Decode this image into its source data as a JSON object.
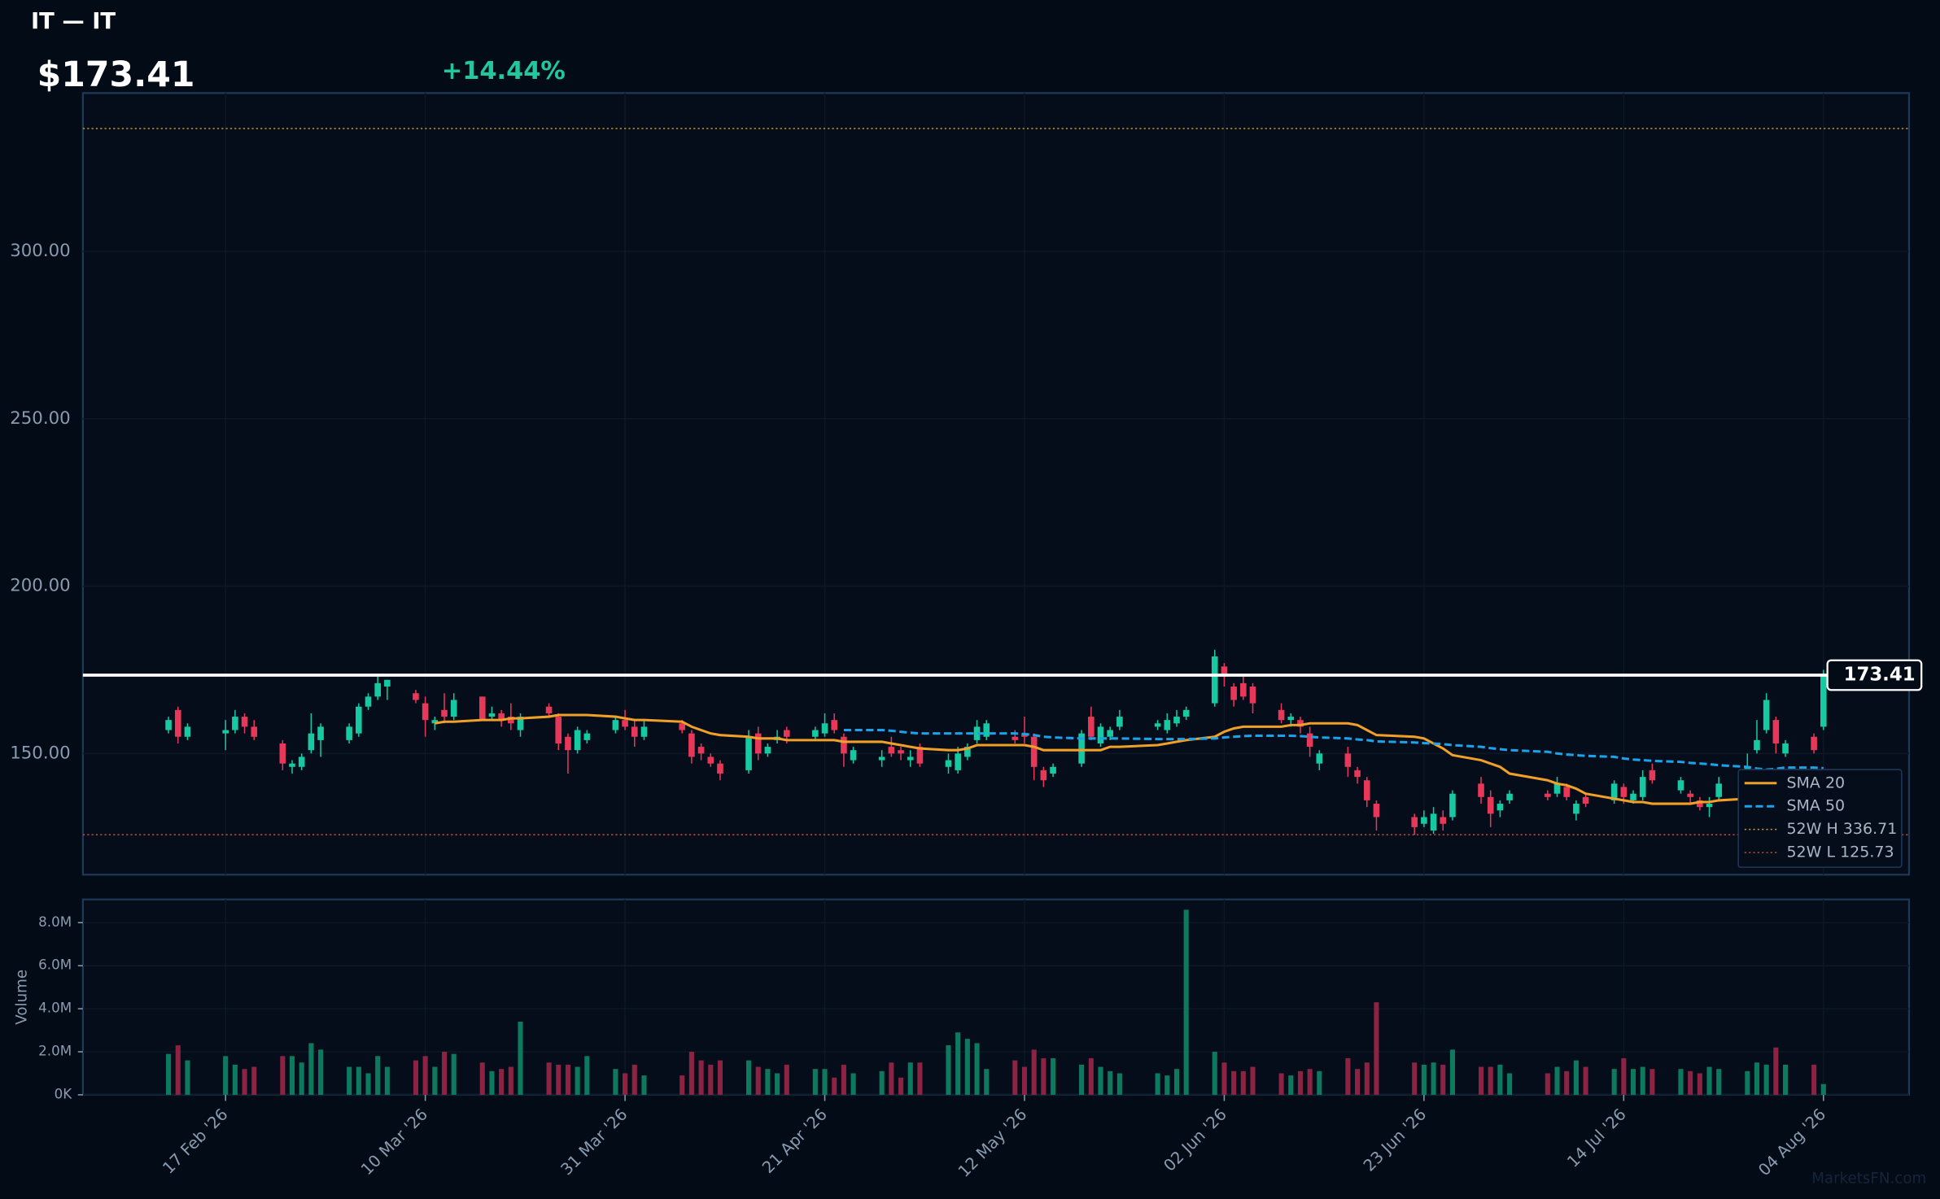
{
  "chart_data": {
    "type": "candlestick",
    "title": "IT — IT",
    "price_label": "$173.41",
    "change_label": "+14.44%",
    "watermark": "MarketsFN.com",
    "up_color": "#16c9a2",
    "down_color": "#e8385a",
    "volume_up_color": "#0d7a60",
    "volume_down_color": "#8c2342",
    "x": [
      "2026-02-11",
      "2026-02-12",
      "2026-02-13",
      "2026-02-17",
      "2026-02-18",
      "2026-02-19",
      "2026-02-20",
      "2026-02-23",
      "2026-02-24",
      "2026-02-25",
      "2026-02-26",
      "2026-02-27",
      "2026-03-02",
      "2026-03-03",
      "2026-03-04",
      "2026-03-05",
      "2026-03-06",
      "2026-03-09",
      "2026-03-10",
      "2026-03-11",
      "2026-03-12",
      "2026-03-13",
      "2026-03-16",
      "2026-03-17",
      "2026-03-18",
      "2026-03-19",
      "2026-03-20",
      "2026-03-23",
      "2026-03-24",
      "2026-03-25",
      "2026-03-26",
      "2026-03-27",
      "2026-03-30",
      "2026-03-31",
      "2026-04-01",
      "2026-04-02",
      "2026-04-06",
      "2026-04-07",
      "2026-04-08",
      "2026-04-09",
      "2026-04-10",
      "2026-04-13",
      "2026-04-14",
      "2026-04-15",
      "2026-04-16",
      "2026-04-17",
      "2026-04-20",
      "2026-04-21",
      "2026-04-22",
      "2026-04-23",
      "2026-04-24",
      "2026-04-27",
      "2026-04-28",
      "2026-04-29",
      "2026-04-30",
      "2026-05-01",
      "2026-05-04",
      "2026-05-05",
      "2026-05-06",
      "2026-05-07",
      "2026-05-08",
      "2026-05-11",
      "2026-05-12",
      "2026-05-13",
      "2026-05-14",
      "2026-05-15",
      "2026-05-18",
      "2026-05-19",
      "2026-05-20",
      "2026-05-21",
      "2026-05-22",
      "2026-05-26",
      "2026-05-27",
      "2026-05-28",
      "2026-05-29",
      "2026-06-01",
      "2026-06-02",
      "2026-06-03",
      "2026-06-04",
      "2026-06-05",
      "2026-06-08",
      "2026-06-09",
      "2026-06-10",
      "2026-06-11",
      "2026-06-12",
      "2026-06-15",
      "2026-06-16",
      "2026-06-17",
      "2026-06-18",
      "2026-06-22",
      "2026-06-23",
      "2026-06-24",
      "2026-06-25",
      "2026-06-26",
      "2026-06-29",
      "2026-06-30",
      "2026-07-01",
      "2026-07-02",
      "2026-07-06",
      "2026-07-07",
      "2026-07-08",
      "2026-07-09",
      "2026-07-10",
      "2026-07-13",
      "2026-07-14",
      "2026-07-15",
      "2026-07-16",
      "2026-07-17",
      "2026-07-20",
      "2026-07-21",
      "2026-07-22",
      "2026-07-23",
      "2026-07-24",
      "2026-07-27",
      "2026-07-28",
      "2026-07-29",
      "2026-07-30",
      "2026-07-31",
      "2026-08-03",
      "2026-08-04"
    ],
    "open": [
      157,
      163,
      155,
      156,
      157,
      161,
      158,
      153,
      146,
      146,
      151,
      154,
      154,
      156,
      164,
      167,
      170,
      168,
      165,
      159,
      163,
      161,
      167,
      161,
      162,
      161,
      157,
      164,
      161,
      155,
      151,
      154,
      157,
      160,
      158,
      155,
      159,
      156,
      152,
      149,
      147,
      145,
      156,
      150,
      154,
      157,
      155,
      156,
      160,
      155,
      148,
      148,
      152,
      151,
      148,
      152,
      146,
      145,
      149,
      154,
      155,
      155,
      156,
      155,
      145,
      144,
      147,
      161,
      153,
      155,
      158,
      158,
      157,
      159,
      161,
      165,
      176,
      170,
      171,
      170,
      163,
      160,
      160,
      156,
      147,
      150,
      145,
      142,
      135,
      131,
      129,
      127,
      131,
      131,
      141,
      137,
      133,
      136,
      138,
      138,
      140,
      132,
      137,
      136,
      140,
      136,
      137,
      145,
      139,
      138,
      136,
      134,
      137,
      144,
      151,
      157,
      160,
      150,
      155,
      158
    ],
    "high": [
      161,
      164,
      159,
      160,
      163,
      162,
      160,
      154,
      148,
      150,
      162,
      159,
      159,
      165,
      168,
      173,
      172,
      169,
      167,
      161,
      168,
      168,
      167,
      164,
      163,
      165,
      162,
      165,
      162,
      156,
      158,
      157,
      161,
      163,
      160,
      160,
      160,
      157,
      153,
      150,
      148,
      157,
      158,
      153,
      157,
      158,
      158,
      162,
      162,
      156,
      152,
      151,
      155,
      152,
      151,
      153,
      150,
      152,
      153,
      160,
      160,
      157,
      161,
      156,
      146,
      147,
      157,
      164,
      159,
      158,
      163,
      160,
      162,
      163,
      164,
      181,
      177,
      171,
      173,
      171,
      165,
      162,
      161,
      158,
      151,
      152,
      146,
      143,
      136,
      132,
      133,
      134,
      133,
      139,
      143,
      139,
      136,
      139,
      139,
      143,
      141,
      136,
      138,
      142,
      141,
      139,
      145,
      147,
      143,
      139,
      137,
      137,
      143,
      150,
      160,
      168,
      161,
      154,
      156,
      175
    ],
    "low": [
      156,
      153,
      154,
      151,
      156,
      156,
      154,
      145,
      144,
      145,
      150,
      149,
      153,
      155,
      163,
      166,
      166,
      165,
      155,
      157,
      159,
      160,
      160,
      160,
      158,
      157,
      155,
      161,
      151,
      144,
      150,
      153,
      156,
      157,
      152,
      154,
      156,
      147,
      148,
      146,
      142,
      144,
      148,
      149,
      153,
      153,
      154,
      155,
      156,
      146,
      147,
      146,
      149,
      148,
      146,
      146,
      144,
      144,
      148,
      153,
      154,
      153,
      153,
      142,
      140,
      143,
      146,
      154,
      152,
      154,
      157,
      157,
      156,
      158,
      160,
      164,
      170,
      164,
      166,
      162,
      159,
      158,
      156,
      149,
      145,
      143,
      141,
      134,
      127,
      125.73,
      128,
      126,
      127,
      130,
      135,
      128,
      131,
      135,
      136,
      137,
      136,
      130,
      134,
      135,
      135,
      135,
      136,
      141,
      138,
      135,
      133,
      131,
      136,
      142,
      150,
      156,
      150,
      149,
      150,
      157
    ],
    "close": [
      160,
      155,
      158,
      157,
      161,
      158,
      155,
      147,
      147,
      149,
      156,
      158,
      158,
      164,
      167,
      171,
      172,
      166,
      160,
      160,
      161,
      166,
      160,
      162,
      160,
      159,
      161,
      162,
      153,
      151,
      157,
      156,
      160,
      158,
      155,
      158,
      157,
      149,
      150,
      147,
      144,
      155,
      150,
      152,
      155,
      155,
      157,
      159,
      157,
      150,
      151,
      149,
      150,
      150,
      149,
      147,
      148,
      150,
      152,
      158,
      159,
      154,
      155,
      146,
      142,
      146,
      156,
      155,
      158,
      157,
      161,
      159,
      160,
      161,
      163,
      179,
      173,
      166,
      167,
      165,
      160,
      161,
      158,
      152,
      150,
      146,
      143,
      136,
      131,
      128,
      131,
      132,
      129,
      138,
      137,
      132,
      135,
      138,
      137,
      141,
      137,
      135,
      135,
      141,
      137,
      138,
      143,
      142,
      142,
      137,
      134,
      135,
      141,
      146,
      154,
      166,
      153,
      153,
      151,
      173.41
    ],
    "volume": [
      1900000,
      2300000,
      1600000,
      1800000,
      1400000,
      1200000,
      1300000,
      1800000,
      1800000,
      1500000,
      2400000,
      2100000,
      1300000,
      1300000,
      1000000,
      1800000,
      1300000,
      1600000,
      1800000,
      1300000,
      2000000,
      1900000,
      1500000,
      1100000,
      1200000,
      1300000,
      3400000,
      1500000,
      1400000,
      1400000,
      1300000,
      1800000,
      1200000,
      1000000,
      1400000,
      900000,
      900000,
      2000000,
      1600000,
      1400000,
      1600000,
      1600000,
      1300000,
      1200000,
      1000000,
      1400000,
      1200000,
      1200000,
      800000,
      1400000,
      1000000,
      1100000,
      1500000,
      800000,
      1500000,
      1500000,
      2300000,
      2900000,
      2600000,
      2400000,
      1200000,
      1600000,
      1300000,
      2100000,
      1700000,
      1700000,
      1400000,
      1700000,
      1300000,
      1100000,
      1000000,
      1000000,
      900000,
      1200000,
      8600000,
      2000000,
      1500000,
      1100000,
      1100000,
      1300000,
      1000000,
      900000,
      1100000,
      1200000,
      1100000,
      1700000,
      1200000,
      1500000,
      4300000,
      1500000,
      1400000,
      1500000,
      1400000,
      2100000,
      1300000,
      1300000,
      1400000,
      1000000,
      1000000,
      1300000,
      1100000,
      1600000,
      1300000,
      1200000,
      1700000,
      1200000,
      1300000,
      1200000,
      1200000,
      1100000,
      1000000,
      1300000,
      1200000,
      1100000,
      1500000,
      1400000,
      2200000,
      1400000,
      1400000,
      500000
    ],
    "series": [
      {
        "name": "SMA 20",
        "color": "#f0a028",
        "dash": false,
        "values": [
          null,
          null,
          null,
          null,
          null,
          null,
          null,
          null,
          null,
          null,
          null,
          null,
          null,
          null,
          null,
          null,
          null,
          null,
          null,
          159,
          159.5,
          159.5,
          160,
          160,
          160,
          160.5,
          160.5,
          161,
          161.5,
          161.5,
          161.5,
          161.5,
          161,
          160.5,
          160,
          160,
          159.5,
          158,
          157,
          156,
          155.5,
          155,
          154.5,
          154.5,
          154.5,
          154,
          154,
          154,
          154,
          153.5,
          153.5,
          153.5,
          153,
          152.5,
          152,
          151.5,
          151,
          151,
          151.5,
          152.5,
          152.5,
          152.5,
          152.5,
          152,
          151,
          151,
          151,
          151,
          151,
          152,
          152,
          152.5,
          153,
          153.5,
          154,
          155,
          156.5,
          157.5,
          158,
          158,
          158,
          158.5,
          158.5,
          159,
          159,
          159,
          158.5,
          157,
          155.5,
          155,
          154.5,
          153,
          151.5,
          149.5,
          148,
          147,
          146,
          144,
          142,
          141,
          140.5,
          139.5,
          138,
          136.5,
          136,
          135.5,
          135.5,
          135,
          135,
          135,
          135.5,
          135.5,
          136,
          136.5,
          137,
          137.5,
          138,
          138,
          138.5,
          139
        ]
      },
      {
        "name": "SMA 50",
        "color": "#1aa2ea",
        "dash": true,
        "values": [
          null,
          null,
          null,
          null,
          null,
          null,
          null,
          null,
          null,
          null,
          null,
          null,
          null,
          null,
          null,
          null,
          null,
          null,
          null,
          null,
          null,
          null,
          null,
          null,
          null,
          null,
          null,
          null,
          null,
          null,
          null,
          null,
          null,
          null,
          null,
          null,
          null,
          null,
          null,
          null,
          null,
          null,
          null,
          null,
          null,
          null,
          null,
          null,
          null,
          157,
          157,
          157,
          156.8,
          156.5,
          156.2,
          156,
          156,
          156,
          156,
          156,
          156,
          156,
          155.8,
          155.5,
          155,
          154.8,
          154.5,
          154.5,
          154.5,
          154.5,
          154.5,
          154.3,
          154.3,
          154.3,
          154.3,
          154.5,
          154.8,
          155,
          155.2,
          155.3,
          155.3,
          155.3,
          155.2,
          155,
          154.8,
          154.5,
          154.2,
          154,
          153.6,
          153.3,
          153.1,
          153,
          152.8,
          152.5,
          152,
          151.6,
          151.3,
          151,
          150.5,
          150,
          149.7,
          149.5,
          149.3,
          149,
          148.5,
          148.2,
          148,
          147.8,
          147.5,
          147.2,
          147,
          146.8,
          146.5,
          146,
          145.5,
          145.2,
          145.4,
          145.8,
          145.8,
          145.6
        ]
      }
    ],
    "hlines": [
      {
        "name": "52W H 336.71",
        "value": 336.71,
        "color": "#b89a2a"
      },
      {
        "name": "52W L 125.73",
        "value": 125.73,
        "color": "#b8483a"
      }
    ],
    "last_price": 173.41,
    "xlim": [
      "2026-02-02",
      "2026-08-13"
    ],
    "xticks": [
      {
        "value": "2026-02-17",
        "label": "17 Feb '26"
      },
      {
        "value": "2026-03-10",
        "label": "10 Mar '26"
      },
      {
        "value": "2026-03-31",
        "label": "31 Mar '26"
      },
      {
        "value": "2026-04-21",
        "label": "21 Apr '26"
      },
      {
        "value": "2026-05-12",
        "label": "12 May '26"
      },
      {
        "value": "2026-06-02",
        "label": "02 Jun '26"
      },
      {
        "value": "2026-06-23",
        "label": "23 Jun '26"
      },
      {
        "value": "2026-07-14",
        "label": "14 Jul '26"
      },
      {
        "value": "2026-08-04",
        "label": "04 Aug '26"
      }
    ],
    "ylim": [
      113.8,
      347.3
    ],
    "yticks": [
      {
        "value": 150,
        "label": "150.00"
      },
      {
        "value": 200,
        "label": "200.00"
      },
      {
        "value": 250,
        "label": "250.00"
      },
      {
        "value": 300,
        "label": "300.00"
      }
    ],
    "grid": true,
    "legend": "lower right",
    "volume_axis": {
      "label": "Volume",
      "ylim": [
        0,
        9080000
      ],
      "yticks": [
        {
          "value": 0,
          "label": "0K"
        },
        {
          "value": 2000000,
          "label": "2.0M"
        },
        {
          "value": 4000000,
          "label": "4.0M"
        },
        {
          "value": 6000000,
          "label": "6.0M"
        },
        {
          "value": 8000000,
          "label": "8.0M"
        }
      ]
    }
  }
}
